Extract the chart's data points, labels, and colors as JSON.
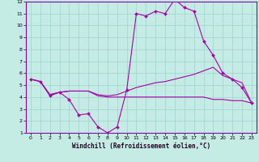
{
  "xlabel": "Windchill (Refroidissement éolien,°C)",
  "xlim": [
    -0.5,
    23.5
  ],
  "ylim": [
    1,
    12
  ],
  "yticks": [
    1,
    2,
    3,
    4,
    5,
    6,
    7,
    8,
    9,
    10,
    11,
    12
  ],
  "xticks": [
    0,
    1,
    2,
    3,
    4,
    5,
    6,
    7,
    8,
    9,
    10,
    11,
    12,
    13,
    14,
    15,
    16,
    17,
    18,
    19,
    20,
    21,
    22,
    23
  ],
  "background_color": "#c5ebe5",
  "grid_color": "#9dd4cc",
  "line_color": "#aa00aa",
  "line1_x": [
    0,
    1,
    2,
    3,
    4,
    5,
    6,
    7,
    8,
    9,
    10,
    11,
    12,
    13,
    14,
    15,
    16,
    17,
    18,
    19,
    20,
    21,
    22,
    23
  ],
  "line1_y": [
    5.5,
    5.3,
    4.1,
    4.4,
    3.8,
    2.5,
    2.6,
    1.5,
    1.0,
    1.5,
    4.6,
    11.0,
    10.8,
    11.2,
    11.0,
    12.2,
    11.5,
    11.2,
    8.7,
    7.5,
    6.0,
    5.5,
    4.8,
    3.5
  ],
  "line2_x": [
    0,
    1,
    2,
    3,
    4,
    5,
    6,
    7,
    8,
    9,
    10,
    11,
    12,
    13,
    14,
    15,
    16,
    17,
    18,
    19,
    20,
    21,
    22,
    23
  ],
  "line2_y": [
    5.5,
    5.3,
    4.2,
    4.4,
    4.5,
    4.5,
    4.5,
    4.2,
    4.1,
    4.2,
    4.5,
    4.8,
    5.0,
    5.2,
    5.3,
    5.5,
    5.7,
    5.9,
    6.2,
    6.5,
    5.8,
    5.5,
    5.2,
    3.5
  ],
  "line3_x": [
    0,
    1,
    2,
    3,
    4,
    5,
    6,
    7,
    8,
    9,
    10,
    11,
    12,
    13,
    14,
    15,
    16,
    17,
    18,
    19,
    20,
    21,
    22,
    23
  ],
  "line3_y": [
    5.5,
    5.3,
    4.2,
    4.4,
    4.5,
    4.5,
    4.5,
    4.1,
    4.0,
    4.0,
    4.0,
    4.0,
    4.0,
    4.0,
    4.0,
    4.0,
    4.0,
    4.0,
    4.0,
    3.8,
    3.8,
    3.7,
    3.7,
    3.5
  ]
}
